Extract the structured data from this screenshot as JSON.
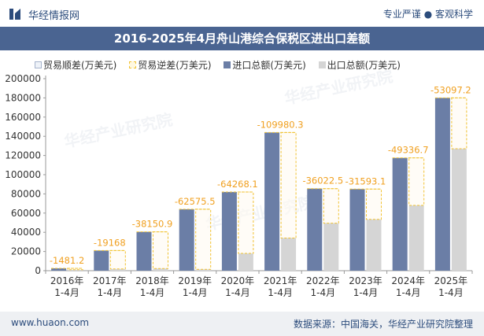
{
  "header": {
    "brand": "华经情报网",
    "tagline": "专业严谨 ● 客观科学"
  },
  "title": "2016-2025年4月舟山港综合保税区进出口差额",
  "legend": {
    "trade_surplus": "贸易顺差(万美元)",
    "trade_deficit": "贸易逆差(万美元)",
    "import_total": "进口总额(万美元)",
    "export_total": "出口总额(万美元)"
  },
  "watermark": "华经产业研究院",
  "footer": {
    "website": "www.huaon.com",
    "source": "数据来源：中国海关，华经产业研究院整理"
  },
  "colors": {
    "import": "#6b7ea6",
    "export": "#d5d5d5",
    "deficit_border": "#f1c232",
    "label": "#f0a020",
    "title_bg": "#4a6491"
  },
  "chart_data": {
    "type": "bar",
    "categories": [
      "2016年\n1-4月",
      "2017年\n1-4月",
      "2018年\n1-4月",
      "2019年\n1-4月",
      "2020年\n1-4月",
      "2021年\n1-4月",
      "2022年\n1-4月",
      "2023年\n1-4月",
      "2024年\n1-4月",
      "2025年\n1-4月"
    ],
    "series": [
      {
        "name": "进口总额(万美元)",
        "values": [
          2500,
          21000,
          40500,
          64000,
          82000,
          144000,
          85500,
          85000,
          117500,
          180000
        ]
      },
      {
        "name": "出口总额(万美元)",
        "values": [
          1000,
          1800,
          2300,
          1400,
          18000,
          34000,
          49500,
          53500,
          68000,
          127000
        ]
      },
      {
        "name": "贸易逆差(万美元)",
        "values": [
          -1481.2,
          -19168,
          -38150.9,
          -62575.5,
          -64268.1,
          -109980.3,
          -36022.5,
          -31593.1,
          -49336.7,
          -53097.2
        ]
      }
    ],
    "data_labels": [
      "-1481.2",
      "-19168",
      "-38150.9",
      "-62575.5",
      "-64268.1",
      "-109980.3",
      "-36022.5",
      "-31593.1",
      "-49336.7",
      "-53097.2"
    ],
    "ylim": [
      0,
      200000
    ],
    "yticks": [
      0,
      20000,
      40000,
      60000,
      80000,
      100000,
      120000,
      140000,
      160000,
      180000,
      200000
    ],
    "xlabel": "",
    "ylabel": ""
  }
}
